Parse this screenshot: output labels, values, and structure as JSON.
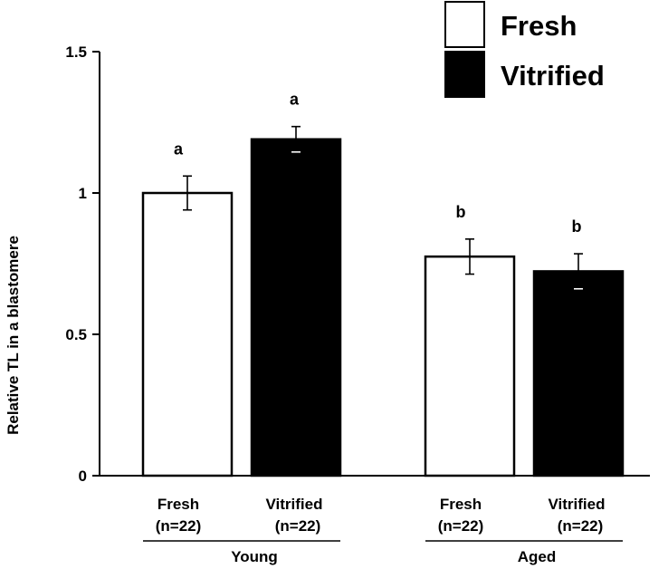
{
  "chart_data": {
    "type": "bar",
    "ylabel": "Relative TL in a blastomere",
    "ylim": [
      0,
      1.5
    ],
    "yticks": [
      {
        "value": 0,
        "label": "0"
      },
      {
        "value": 0.5,
        "label": "0.5"
      },
      {
        "value": 1,
        "label": "1"
      },
      {
        "value": 1.5,
        "label": "1.5"
      }
    ],
    "grid": false,
    "legend": {
      "position": "top-right",
      "entries": [
        {
          "name": "Fresh",
          "color": "#ffffff"
        },
        {
          "name": "Vitrified",
          "color": "#000000"
        }
      ]
    },
    "groups": [
      {
        "label": "Young",
        "bars": [
          {
            "series": "Fresh",
            "line1": "Fresh",
            "line2": "(n=22)",
            "value": 1.0,
            "error": 0.06,
            "sig": "a",
            "color": "#ffffff"
          },
          {
            "series": "Vitrified",
            "line1": "Vitrified",
            "line2": "(n=22)",
            "value": 1.19,
            "error": 0.045,
            "sig": "a",
            "color": "#000000"
          }
        ]
      },
      {
        "label": "Aged",
        "bars": [
          {
            "series": "Fresh",
            "line1": "Fresh",
            "line2": "(n=22)",
            "value": 0.775,
            "error": 0.062,
            "sig": "b",
            "color": "#ffffff"
          },
          {
            "series": "Vitrified",
            "line1": "Vitrified",
            "line2": "(n=22)",
            "value": 0.723,
            "error": 0.062,
            "sig": "b",
            "color": "#000000"
          }
        ]
      }
    ]
  }
}
